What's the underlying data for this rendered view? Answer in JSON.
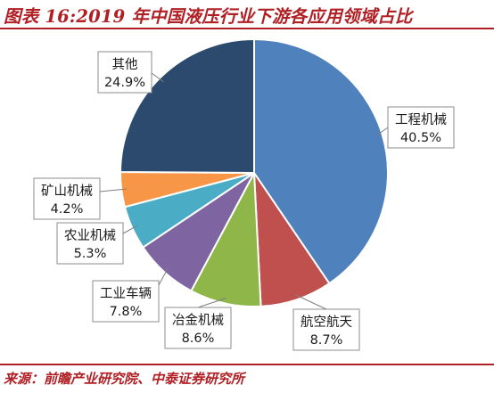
{
  "title": "图表 16:2019 年中国液压行业下游各应用领域占比",
  "source": "来源：前瞻产业研究院、中泰证券研究所",
  "colors": {
    "accent": "#b01f24"
  },
  "chart_data": {
    "type": "pie",
    "title": "图表 16:2019 年中国液压行业下游各应用领域占比",
    "slices": [
      {
        "label": "工程机械",
        "value": 40.5,
        "value_label": "40.5%",
        "color": "#4f81bd"
      },
      {
        "label": "航空航天",
        "value": 8.7,
        "value_label": "8.7%",
        "color": "#c0504d"
      },
      {
        "label": "冶金机械",
        "value": 8.6,
        "value_label": "8.6%",
        "color": "#8eb648"
      },
      {
        "label": "工业车辆",
        "value": 7.8,
        "value_label": "7.8%",
        "color": "#7f64a2"
      },
      {
        "label": "农业机械",
        "value": 5.3,
        "value_label": "5.3%",
        "color": "#4bacc6"
      },
      {
        "label": "矿山机械",
        "value": 4.2,
        "value_label": "4.2%",
        "color": "#f79646"
      },
      {
        "label": "其他",
        "value": 24.9,
        "value_label": "24.9%",
        "color": "#2c4a6e"
      }
    ],
    "legend": "none",
    "data_labels": "category and percentage, boxed callouts with leader lines"
  }
}
